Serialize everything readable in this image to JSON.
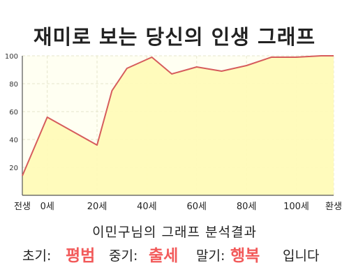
{
  "title": "재미로 보는 당신의 인생 그래프",
  "subtitle": "이민구님의 그래프 분석결과",
  "summary": {
    "early_label": "초기:",
    "early_value": "평범",
    "mid_label": "중기:",
    "mid_value": "출세",
    "late_label": "말기:",
    "late_value": "행복",
    "ending": "입니다"
  },
  "colors": {
    "line": "#d65c5c",
    "fill": "#fffbb8",
    "highlight": "#f25a5a"
  },
  "chart_data": {
    "type": "area",
    "x": [
      -10,
      0,
      10,
      20,
      26,
      32,
      42,
      50,
      60,
      70,
      80,
      90,
      100,
      110,
      115
    ],
    "y": [
      14,
      56,
      46,
      36,
      75,
      91,
      99,
      87,
      92,
      89,
      93,
      99,
      99,
      100,
      100
    ],
    "x_ticks": [
      {
        "x": -10,
        "label": "전생"
      },
      {
        "x": 0,
        "label": "0세"
      },
      {
        "x": 20,
        "label": "20세"
      },
      {
        "x": 40,
        "label": "40세"
      },
      {
        "x": 60,
        "label": "60세"
      },
      {
        "x": 80,
        "label": "80세"
      },
      {
        "x": 100,
        "label": "100세"
      },
      {
        "x": 115,
        "label": "환생"
      }
    ],
    "y_ticks": [
      20,
      40,
      60,
      80,
      100
    ],
    "xlim": [
      -10,
      115
    ],
    "ylim": [
      0,
      100
    ],
    "grid": true,
    "legend": "none"
  }
}
